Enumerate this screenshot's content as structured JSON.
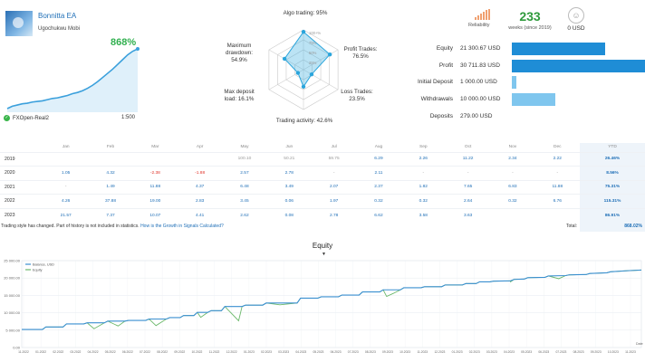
{
  "card": {
    "ea_name": "Bonnitta EA",
    "author": "Ugochukwu Mobi",
    "growth": "868%",
    "account": "FXOpen-Real2",
    "leverage": "1:500",
    "mini_curve": [
      0,
      4,
      6,
      8,
      9,
      11,
      12,
      13,
      15,
      17,
      18,
      20,
      22,
      25,
      27,
      30,
      34,
      39,
      45,
      52,
      59,
      66,
      74,
      82,
      90,
      96,
      100
    ],
    "accent": "#31b04f",
    "line_color": "#3ba0dc"
  },
  "radar": {
    "center_label": "100+%",
    "ring_labels": [
      "75%",
      "50%",
      "25%"
    ],
    "axes": [
      {
        "label": "Algo trading: 95%",
        "value": 95
      },
      {
        "label": "Profit Trades:\n76.5%",
        "value": 76.5
      },
      {
        "label": "Loss Trades:\n23.5%",
        "value": 23.5
      },
      {
        "label": "Trading activity: 42.6%",
        "value": 42.6
      },
      {
        "label": "Max deposit\nload: 16.1%",
        "value": 16.1
      },
      {
        "label": "Maximum\ndrawdown:\n54.9%",
        "value": 54.9
      }
    ]
  },
  "stats": {
    "reliability_label": "Reliability",
    "weeks_value": "233",
    "weeks_label": "weeks (since 2019)",
    "subscribers_value": "0 USD",
    "subscribers_icon": "people-icon"
  },
  "financials": [
    {
      "name": "Equity",
      "value": "21 300.67 USD",
      "bar_fraction": 0.694,
      "color": "#1f8dd6"
    },
    {
      "name": "Profit",
      "value": "30 711.83 USD",
      "bar_fraction": 1.0,
      "color": "#1f8dd6"
    },
    {
      "name": "Initial Deposit",
      "value": "1 000.00 USD",
      "bar_fraction": 0.033,
      "color": "#7fc6ee"
    },
    {
      "name": "Withdrawals",
      "value": "10 000.00 USD",
      "bar_fraction": 0.326,
      "color": "#7fc6ee"
    },
    {
      "name": "Deposits",
      "value": "279.00 USD",
      "bar_fraction": 0,
      "color": "#7fc6ee"
    }
  ],
  "monthly": {
    "headers": [
      "",
      "Jan",
      "Feb",
      "Mar",
      "Apr",
      "May",
      "Jun",
      "Jul",
      "Aug",
      "Sep",
      "Oct",
      "Nov",
      "Dec",
      "YTD"
    ],
    "rows": [
      {
        "year": "2019",
        "cells": [
          "",
          "",
          "",
          "",
          "100.10",
          "50.21",
          "59.75",
          "6.29",
          "2.26",
          "11.22",
          "2.34",
          "2.22"
        ],
        "ytd": "26.46%"
      },
      {
        "year": "2020",
        "cells": [
          "1.05",
          "4.32",
          "-2.38",
          "-1.88",
          "2.57",
          "2.78",
          "-",
          "2.11",
          "-",
          "-",
          "-",
          "-"
        ],
        "ytd": "8.56%"
      },
      {
        "year": "2021",
        "cells": [
          "-",
          "1.49",
          "11.88",
          "4.37",
          "6.48",
          "3.49",
          "2.07",
          "2.37",
          "1.82",
          "7.65",
          "6.83",
          "11.88"
        ],
        "ytd": "75.31%"
      },
      {
        "year": "2022",
        "cells": [
          "4.26",
          "37.88",
          "19.00",
          "2.83",
          "3.45",
          "0.06",
          "1.97",
          "0.32",
          "0.32",
          "2.64",
          "0.32",
          "6.76"
        ],
        "ytd": "115.31%"
      },
      {
        "year": "2023",
        "cells": [
          "21.57",
          "7.37",
          "10.07",
          "4.41",
          "2.62",
          "0.08",
          "2.78",
          "6.62",
          "3.58",
          "3.63",
          "",
          ""
        ],
        "ytd": "86.91%"
      }
    ],
    "note": "Trading style has changed. Part of history is not included in statistics.",
    "note_link": "How is the Growth in Signals Calculated?",
    "total_label": "Total:",
    "total_value": "868.02%"
  },
  "equity_chart": {
    "title": "Equity",
    "legend": [
      "Balance, USD",
      "Equity"
    ],
    "series_colors": {
      "balance": "#3a8fd0",
      "equity": "#6bb86b"
    },
    "y_ticks": [
      "25 000.00",
      "20 000.00",
      "15 000.00",
      "10 000.00",
      "5 000.00",
      "0.00"
    ],
    "ylim": [
      0,
      25000
    ],
    "x_ticks": [
      "11.2022",
      "01.2022",
      "02.2022",
      "03.2022",
      "04.2022",
      "05.2022",
      "06.2022",
      "07.2022",
      "08.2022",
      "09.2022",
      "10.2022",
      "11.2022",
      "12.2022",
      "01.2023",
      "02.2023",
      "03.2023",
      "04.2023",
      "05.2023",
      "06.2023",
      "07.2023",
      "08.2023",
      "09.2023",
      "10.2023",
      "11.2023",
      "12.2023",
      "01.2023",
      "02.2023",
      "03.2023",
      "04.2023",
      "05.2023",
      "06.2023",
      "07.2023",
      "08.2023",
      "09.2023",
      "10.2023",
      "11.2023"
    ],
    "x_end_label": "Date",
    "balance": [
      [
        0,
        5200
      ],
      [
        3,
        5200
      ],
      [
        3.5,
        5900
      ],
      [
        6,
        5900
      ],
      [
        6.5,
        6800
      ],
      [
        9,
        6800
      ],
      [
        9.5,
        7100
      ],
      [
        12,
        7100
      ],
      [
        12.5,
        7600
      ],
      [
        15,
        7600
      ],
      [
        15.5,
        7800
      ],
      [
        18,
        7800
      ],
      [
        18.5,
        8200
      ],
      [
        21,
        8200
      ],
      [
        21.5,
        8600
      ],
      [
        23,
        8600
      ],
      [
        23.5,
        9200
      ],
      [
        25,
        9200
      ],
      [
        25.5,
        10100
      ],
      [
        27,
        10100
      ],
      [
        27.5,
        10600
      ],
      [
        29,
        10600
      ],
      [
        29.5,
        11800
      ],
      [
        32,
        11800
      ],
      [
        32.5,
        12200
      ],
      [
        35,
        12200
      ],
      [
        35.5,
        12800
      ],
      [
        40,
        12800
      ],
      [
        40.5,
        14200
      ],
      [
        43,
        14200
      ],
      [
        43.5,
        14600
      ],
      [
        46,
        14600
      ],
      [
        46.5,
        15100
      ],
      [
        49,
        15100
      ],
      [
        49.5,
        16000
      ],
      [
        52,
        16000
      ],
      [
        52.5,
        16600
      ],
      [
        55,
        16600
      ],
      [
        55.5,
        17200
      ],
      [
        58,
        17200
      ],
      [
        58.5,
        17500
      ],
      [
        61,
        17500
      ],
      [
        61.5,
        18000
      ],
      [
        64,
        18000
      ],
      [
        64.5,
        18400
      ],
      [
        66,
        18400
      ],
      [
        66.5,
        18900
      ],
      [
        68,
        18900
      ],
      [
        68.5,
        19100
      ],
      [
        71,
        19200
      ],
      [
        71.5,
        19600
      ],
      [
        73,
        19700
      ],
      [
        73.5,
        20100
      ],
      [
        76,
        20200
      ],
      [
        76.5,
        20600
      ],
      [
        79,
        20700
      ],
      [
        79.5,
        20900
      ],
      [
        82,
        21000
      ],
      [
        82.5,
        21300
      ],
      [
        85,
        21500
      ],
      [
        85.5,
        21800
      ],
      [
        88,
        22100
      ],
      [
        90,
        22300
      ]
    ],
    "equity_dips": [
      [
        10.5,
        5400
      ],
      [
        14,
        6200
      ],
      [
        19.5,
        6300
      ],
      [
        26,
        8700
      ],
      [
        31.5,
        7700
      ],
      [
        35,
        12200
      ],
      [
        37.5,
        12300
      ],
      [
        53,
        14700
      ],
      [
        54,
        15600
      ],
      [
        71,
        18900
      ],
      [
        78,
        19800
      ]
    ]
  }
}
